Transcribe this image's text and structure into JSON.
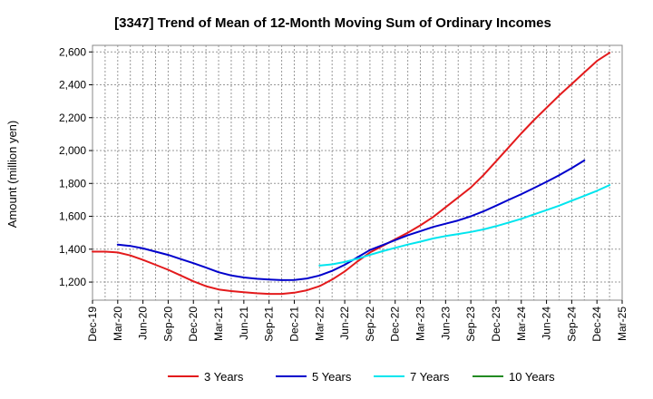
{
  "chart_data": {
    "type": "line",
    "title": "[3347]  Trend of Mean of 12-Month Moving Sum of Ordinary Incomes",
    "xlabel": "",
    "ylabel": "Amount (million yen)",
    "ylim": [
      1090,
      2640
    ],
    "yticks": [
      1200,
      1400,
      1600,
      1800,
      2000,
      2200,
      2400,
      2600
    ],
    "ytick_labels": [
      "1,200",
      "1,400",
      "1,600",
      "1,800",
      "2,000",
      "2,200",
      "2,400",
      "2,600"
    ],
    "x_labels": [
      "Dec-19",
      "Mar-20",
      "Jun-20",
      "Sep-20",
      "Dec-20",
      "Mar-21",
      "Jun-21",
      "Sep-21",
      "Dec-21",
      "Mar-22",
      "Jun-22",
      "Sep-22",
      "Dec-22",
      "Mar-23",
      "Jun-23",
      "Sep-23",
      "Dec-23",
      "Mar-24",
      "Jun-24",
      "Sep-24",
      "Dec-24",
      "Mar-25"
    ],
    "grid": true,
    "legend_position": "bottom",
    "series": [
      {
        "name": "3 Years",
        "color": "#e31a1c",
        "start_index": 0,
        "values": [
          1385,
          1385,
          1380,
          1362,
          1335,
          1305,
          1275,
          1240,
          1205,
          1175,
          1155,
          1145,
          1138,
          1132,
          1128,
          1128,
          1135,
          1150,
          1175,
          1215,
          1265,
          1325,
          1380,
          1420,
          1460,
          1500,
          1545,
          1595,
          1655,
          1715,
          1775,
          1850,
          1935,
          2020,
          2105,
          2185,
          2260,
          2335,
          2405,
          2475,
          2545,
          2595
        ]
      },
      {
        "name": "5 Years",
        "color": "#0000cc",
        "start_index": 2,
        "values": [
          1428,
          1420,
          1405,
          1385,
          1365,
          1340,
          1315,
          1288,
          1260,
          1240,
          1228,
          1220,
          1215,
          1212,
          1213,
          1222,
          1240,
          1268,
          1305,
          1350,
          1395,
          1425,
          1455,
          1485,
          1510,
          1535,
          1555,
          1575,
          1600,
          1630,
          1665,
          1700,
          1735,
          1772,
          1810,
          1850,
          1893,
          1940
        ]
      },
      {
        "name": "7 Years",
        "color": "#00e5ee",
        "start_index": 18,
        "values": [
          1300,
          1308,
          1322,
          1342,
          1365,
          1388,
          1408,
          1428,
          1446,
          1465,
          1480,
          1492,
          1505,
          1520,
          1540,
          1562,
          1585,
          1612,
          1638,
          1665,
          1695,
          1725,
          1755,
          1790
        ]
      },
      {
        "name": "10 Years",
        "color": "#228b22",
        "start_index": 0,
        "values": []
      }
    ]
  }
}
